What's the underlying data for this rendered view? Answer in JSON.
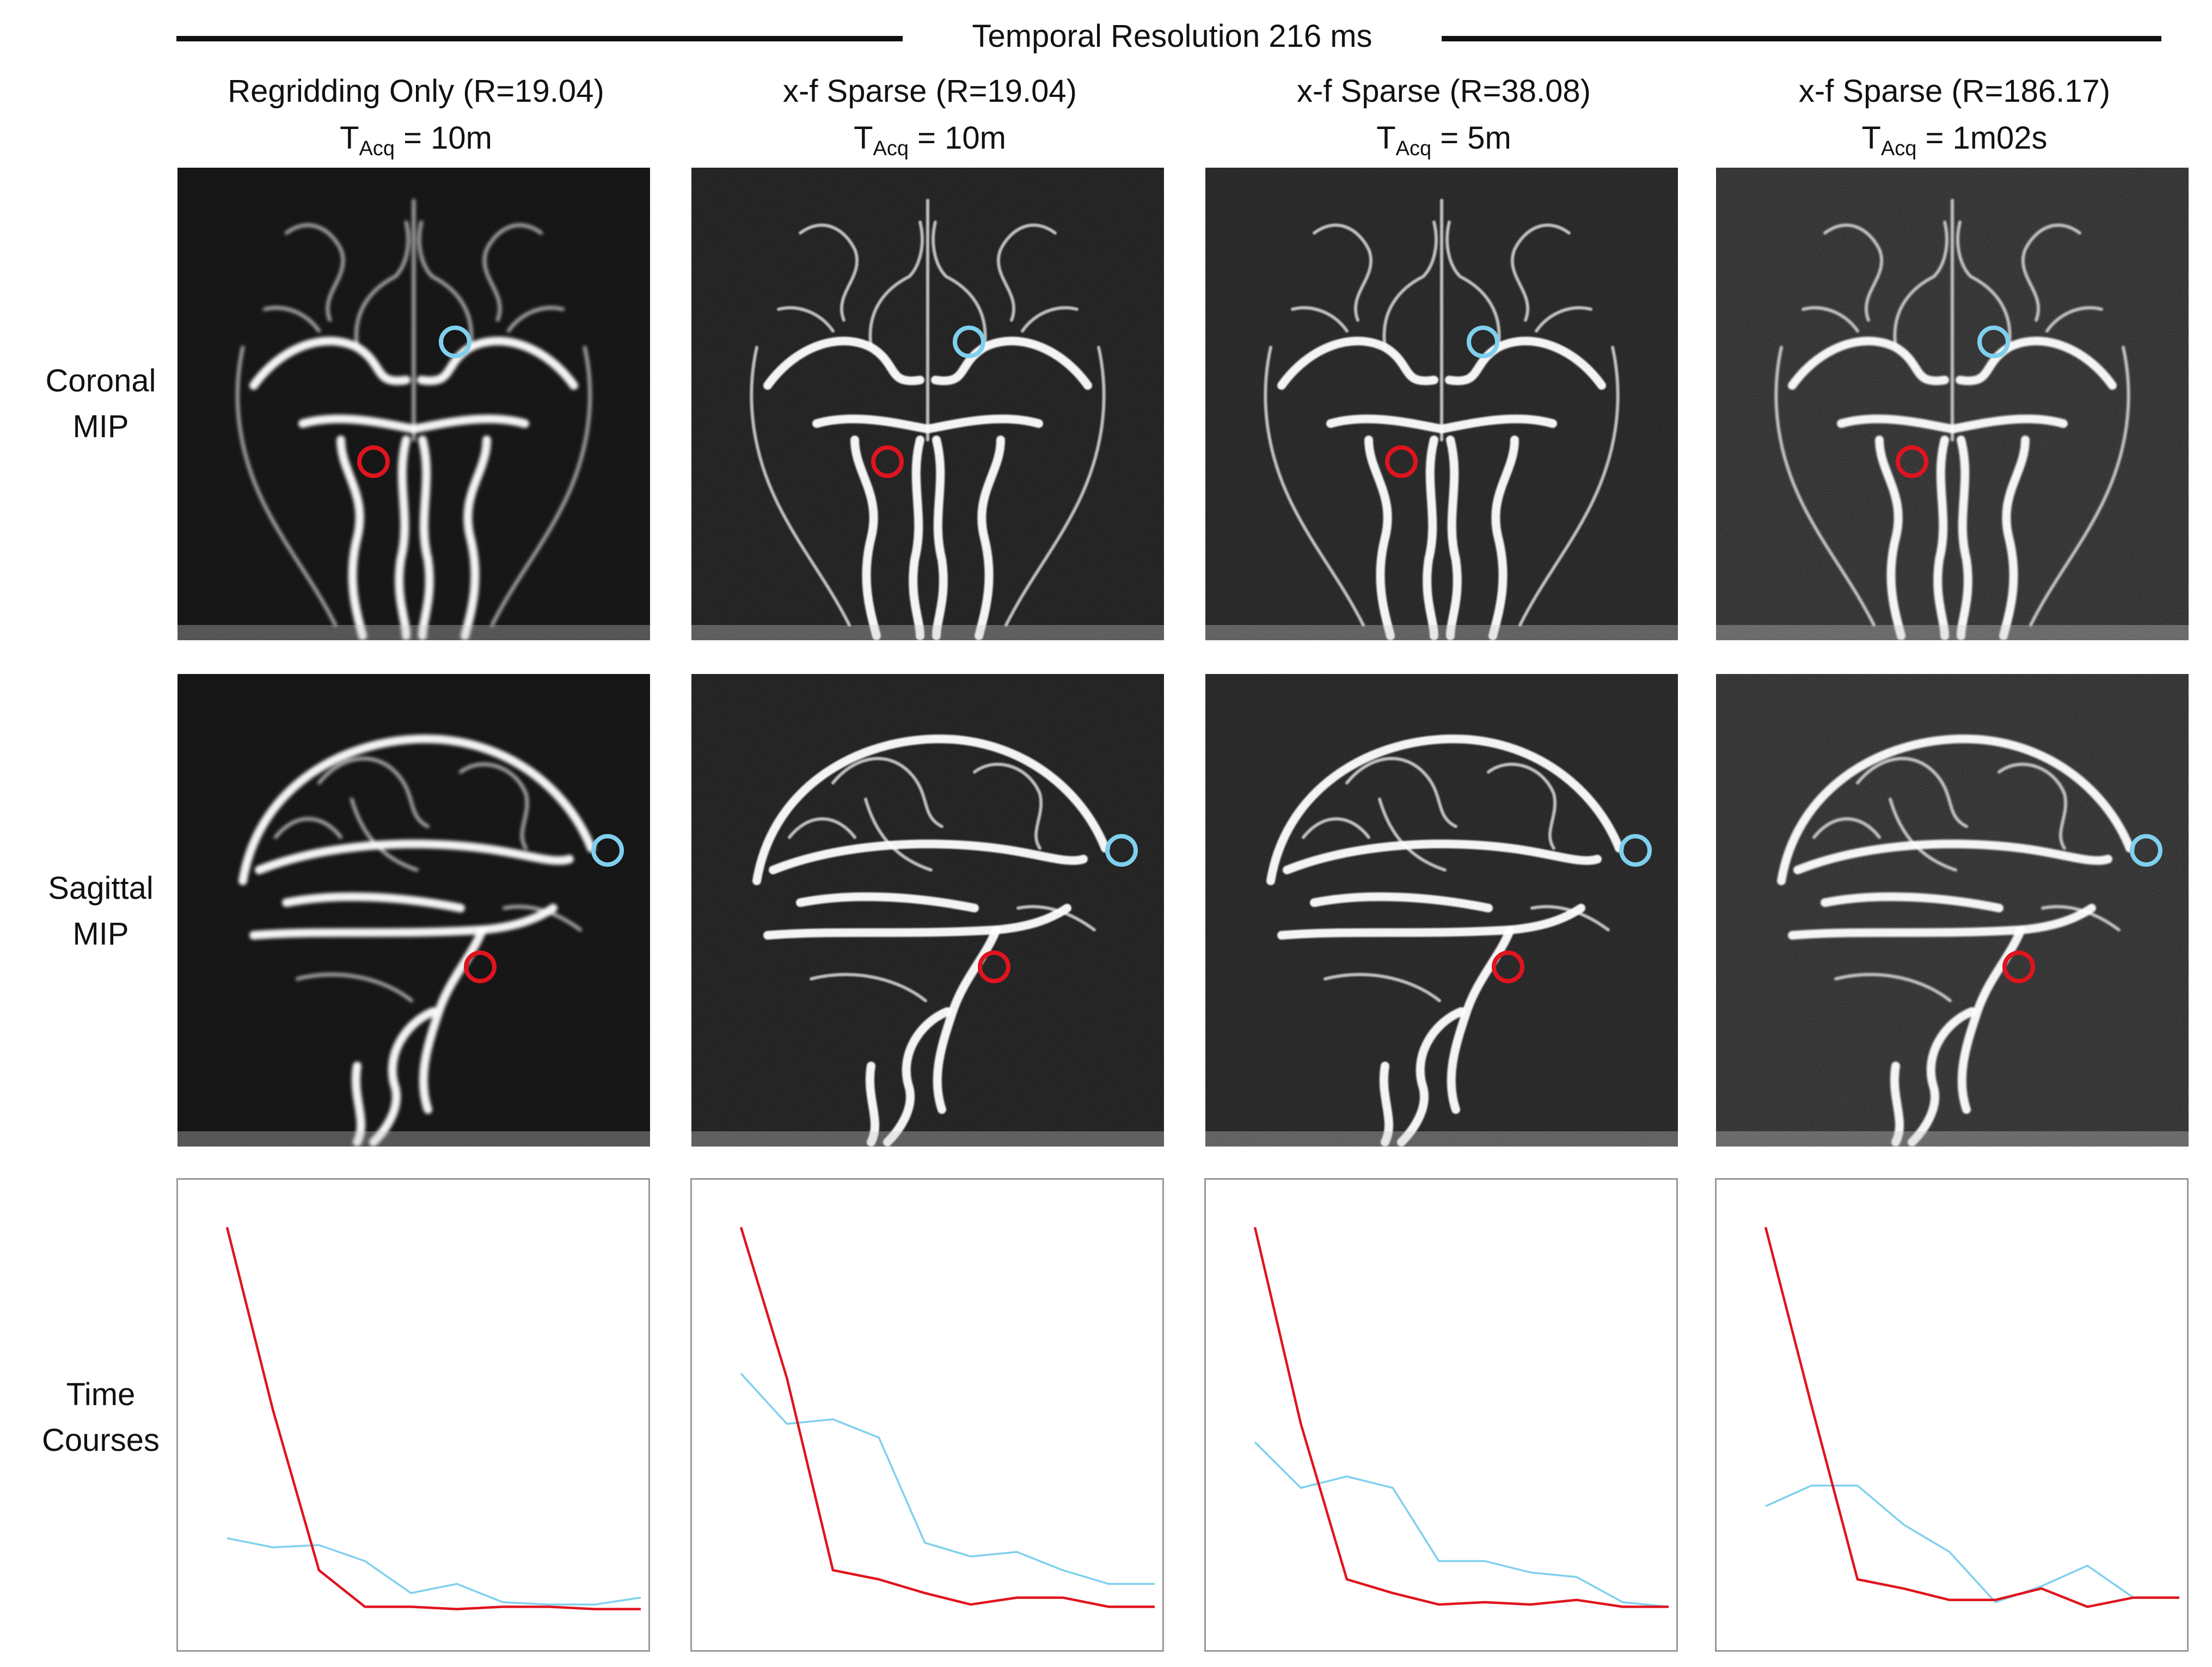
{
  "figure": {
    "banner": "Temporal Resolution 216 ms",
    "row_labels": {
      "coronal": [
        "Coronal",
        "MIP"
      ],
      "sagittal": [
        "Sagittal",
        "MIP"
      ],
      "time": [
        "Time",
        "Courses"
      ]
    },
    "columns": [
      {
        "method": "Regridding Only (R=19.04)",
        "t_prefix": "T",
        "t_sub": "Acq",
        "t_value": " = 10m"
      },
      {
        "method": "x-f Sparse (R=19.04)",
        "t_prefix": "T",
        "t_sub": "Acq",
        "t_value": " = 10m"
      },
      {
        "method": "x-f Sparse (R=38.08)",
        "t_prefix": "T",
        "t_sub": "Acq",
        "t_value": " = 5m"
      },
      {
        "method": "x-f Sparse (R=186.17)",
        "t_prefix": "T",
        "t_sub": "Acq",
        "t_value": " = 1m02s"
      }
    ],
    "roi_colors": {
      "artery": "#e0141e",
      "vein": "#7fd0ee"
    },
    "panel_background": "#0c0c0c",
    "vessel_color": "#ffffff"
  },
  "chart_data": [
    {
      "type": "line",
      "title": "",
      "xlabel": "",
      "ylabel": "",
      "ylim": [
        0,
        1
      ],
      "x": [
        1,
        2,
        3,
        4,
        5,
        6,
        7,
        8,
        9,
        10
      ],
      "series": [
        {
          "color": "#e0141e",
          "values": [
            0.92,
            0.52,
            0.17,
            0.09,
            0.09,
            0.085,
            0.09,
            0.09,
            0.085,
            0.085
          ]
        },
        {
          "color": "#7fd0ee",
          "values": [
            0.24,
            0.22,
            0.225,
            0.19,
            0.12,
            0.14,
            0.1,
            0.095,
            0.095,
            0.11
          ]
        }
      ]
    },
    {
      "type": "line",
      "title": "",
      "xlabel": "",
      "ylabel": "",
      "ylim": [
        0,
        1
      ],
      "x": [
        1,
        2,
        3,
        4,
        5,
        6,
        7,
        8,
        9,
        10
      ],
      "series": [
        {
          "color": "#e0141e",
          "values": [
            0.92,
            0.59,
            0.17,
            0.15,
            0.12,
            0.095,
            0.11,
            0.11,
            0.09,
            0.09
          ]
        },
        {
          "color": "#7fd0ee",
          "values": [
            0.6,
            0.49,
            0.5,
            0.46,
            0.23,
            0.2,
            0.21,
            0.17,
            0.14,
            0.14
          ]
        }
      ]
    },
    {
      "type": "line",
      "title": "",
      "xlabel": "",
      "ylabel": "",
      "ylim": [
        0,
        1
      ],
      "x": [
        1,
        2,
        3,
        4,
        5,
        6,
        7,
        8,
        9,
        10
      ],
      "series": [
        {
          "color": "#e0141e",
          "values": [
            0.92,
            0.49,
            0.15,
            0.12,
            0.095,
            0.1,
            0.095,
            0.105,
            0.09,
            0.09
          ]
        },
        {
          "color": "#7fd0ee",
          "values": [
            0.45,
            0.35,
            0.375,
            0.35,
            0.19,
            0.19,
            0.165,
            0.155,
            0.1,
            0.09
          ]
        }
      ]
    },
    {
      "type": "line",
      "title": "",
      "xlabel": "",
      "ylabel": "",
      "ylim": [
        0,
        1
      ],
      "x": [
        1,
        2,
        3,
        4,
        5,
        6,
        7,
        8,
        9,
        10
      ],
      "series": [
        {
          "color": "#e0141e",
          "values": [
            0.92,
            0.53,
            0.15,
            0.13,
            0.105,
            0.105,
            0.13,
            0.09,
            0.11,
            0.11
          ]
        },
        {
          "color": "#7fd0ee",
          "values": [
            0.31,
            0.355,
            0.355,
            0.27,
            0.21,
            0.1,
            0.135,
            0.18,
            0.11,
            0.11
          ]
        }
      ]
    }
  ]
}
